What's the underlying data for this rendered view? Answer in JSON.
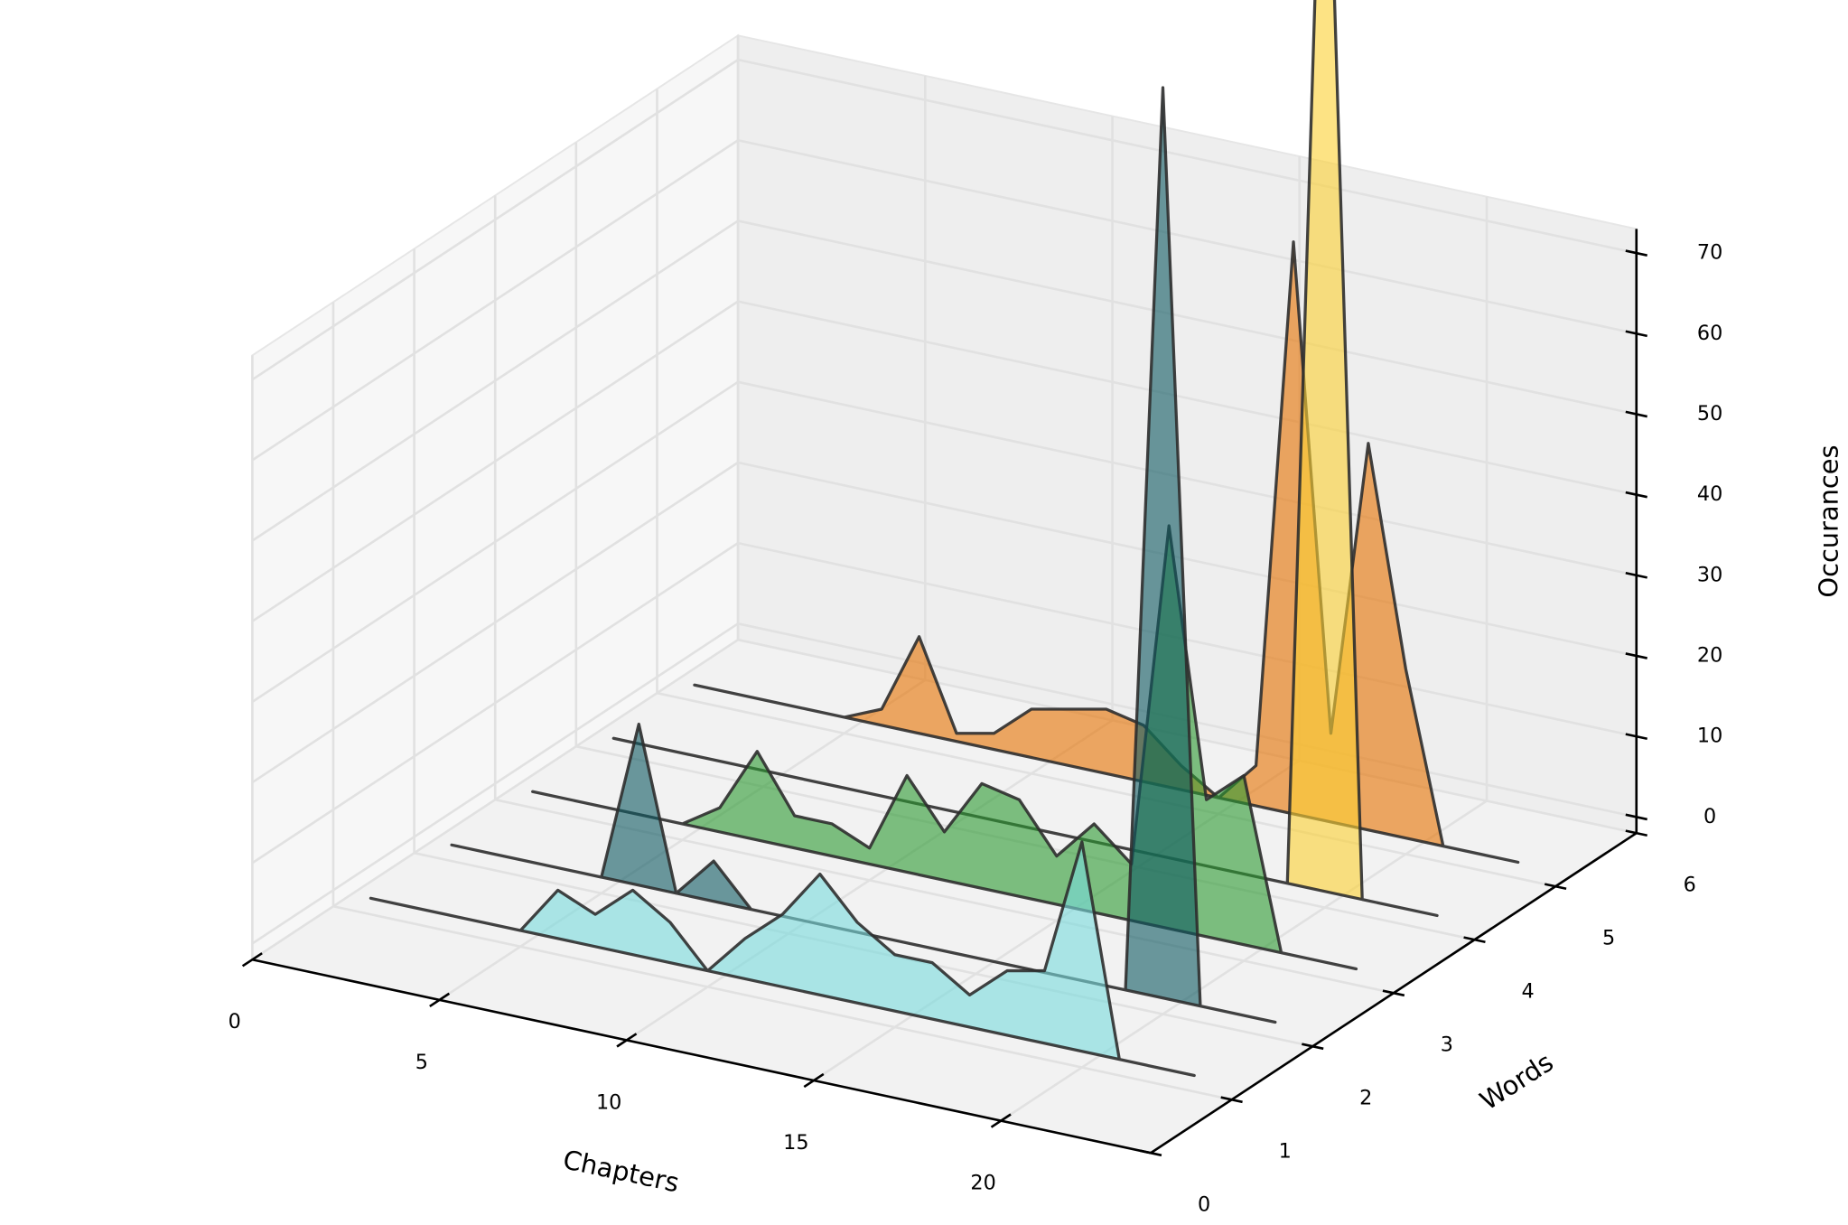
{
  "chart_data": {
    "type": "polygon3d",
    "xlabel": "Chapters",
    "ylabel": "Words",
    "zlabel": "Occurances",
    "x": [
      1,
      2,
      3,
      4,
      5,
      6,
      7,
      8,
      9,
      10,
      11,
      12,
      13,
      14,
      15,
      16,
      17,
      18,
      19,
      20,
      21,
      22,
      23
    ],
    "series": [
      {
        "y": 5,
        "color": "#e67100",
        "values": [
          0,
          0,
          0,
          0,
          0,
          2,
          12,
          1,
          2,
          6,
          7,
          8,
          7,
          3,
          0,
          5,
          71,
          11,
          48,
          21,
          0,
          0,
          0
        ]
      },
      {
        "y": 4,
        "color": "#fcd132",
        "values": [
          0,
          0,
          0,
          0,
          0,
          0,
          0,
          0,
          0,
          0,
          0,
          0,
          0,
          0,
          0,
          0,
          0,
          0,
          0,
          150,
          0,
          0,
          0
        ]
      },
      {
        "y": 3,
        "color": "#2b9930",
        "values": [
          0,
          0,
          0,
          0,
          0,
          3,
          11,
          4,
          4,
          2,
          12,
          6,
          13,
          12,
          6,
          11,
          7,
          50,
          17,
          21,
          0,
          0,
          0
        ]
      },
      {
        "y": 2,
        "color": "#0d5861",
        "values": [
          0,
          0,
          0,
          0,
          0,
          20,
          0,
          5,
          0,
          0,
          0,
          0,
          0,
          0,
          0,
          0,
          0,
          0,
          0,
          113,
          0,
          0,
          0
        ]
      },
      {
        "y": 1,
        "color": "#78dadc",
        "values": [
          0,
          0,
          0,
          0,
          0,
          6,
          4,
          8,
          5,
          0,
          5,
          9,
          15,
          10,
          7,
          7,
          4,
          8,
          9,
          26,
          0,
          0,
          0
        ]
      }
    ],
    "alpha": 0.6,
    "xlim": [
      0,
      24
    ],
    "ylim": [
      0,
      6
    ],
    "zlim": [
      -2,
      73
    ],
    "xticks": [
      0,
      5,
      10,
      15,
      20
    ],
    "yticks": [
      0,
      1,
      2,
      3,
      4,
      5,
      6
    ],
    "zticks": [
      0,
      10,
      20,
      30,
      40,
      50,
      60,
      70
    ],
    "grid": true
  }
}
